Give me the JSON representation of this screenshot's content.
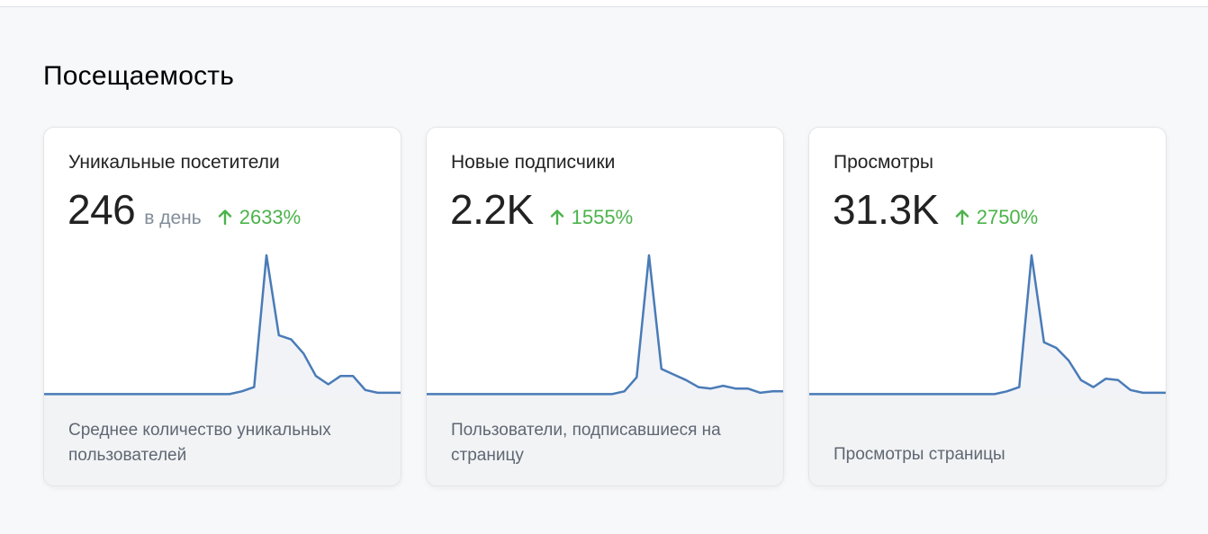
{
  "section_title": "Посещаемость",
  "colors": {
    "line": "#4a7bb7",
    "fill": "#f1f3f7",
    "positive": "#4bb34b",
    "footer_bg": "#f2f3f5"
  },
  "cards": [
    {
      "title": "Уникальные посетители",
      "value": "246",
      "unit": "в день",
      "change": "2633%",
      "change_icon": "arrow-up-icon",
      "description": "Среднее количество уникальных пользователей",
      "sparkline": [
        0.01,
        0.01,
        0.01,
        0.01,
        0.01,
        0.01,
        0.01,
        0.01,
        0.01,
        0.01,
        0.01,
        0.01,
        0.01,
        0.01,
        0.01,
        0.01,
        0.03,
        0.06,
        1.0,
        0.43,
        0.4,
        0.3,
        0.14,
        0.08,
        0.14,
        0.14,
        0.04,
        0.02,
        0.02,
        0.02
      ]
    },
    {
      "title": "Новые подписчики",
      "value": "2.2K",
      "unit": "",
      "change": "1555%",
      "change_icon": "arrow-up-icon",
      "description": "Пользователи, подписавшиеся на страницу",
      "sparkline": [
        0.01,
        0.01,
        0.01,
        0.01,
        0.01,
        0.01,
        0.01,
        0.01,
        0.01,
        0.01,
        0.01,
        0.01,
        0.01,
        0.01,
        0.01,
        0.01,
        0.03,
        0.13,
        1.0,
        0.19,
        0.15,
        0.11,
        0.06,
        0.05,
        0.07,
        0.05,
        0.05,
        0.02,
        0.03,
        0.03
      ]
    },
    {
      "title": "Просмотры",
      "value": "31.3K",
      "unit": "",
      "change": "2750%",
      "change_icon": "arrow-up-icon",
      "description": "Просмотры страницы",
      "sparkline": [
        0.01,
        0.01,
        0.01,
        0.01,
        0.01,
        0.01,
        0.01,
        0.01,
        0.01,
        0.01,
        0.01,
        0.01,
        0.01,
        0.01,
        0.01,
        0.01,
        0.03,
        0.06,
        1.0,
        0.38,
        0.34,
        0.25,
        0.11,
        0.06,
        0.12,
        0.11,
        0.04,
        0.02,
        0.02,
        0.02
      ]
    }
  ]
}
